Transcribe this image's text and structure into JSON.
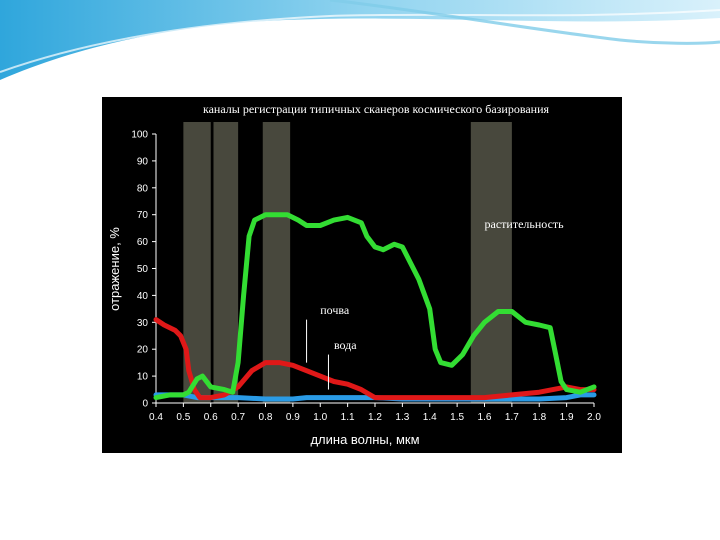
{
  "colors": {
    "vegetation": "#33dd33",
    "soil": "#e01818",
    "water": "#2a9be6",
    "band": "#5a5a4c",
    "background": "#000000"
  },
  "chart_data": {
    "type": "line",
    "title": "каналы регистрации типичных сканеров космического базирования",
    "xlabel": "длина волны, мкм",
    "ylabel": "отражение, %",
    "xlim": [
      0.4,
      2.0
    ],
    "ylim": [
      0,
      100
    ],
    "x_ticks": [
      "0.4",
      "0.5",
      "0.6",
      "0.7",
      "0.8",
      "0.9",
      "1.0",
      "1.1",
      "1.2",
      "1.3",
      "1.4",
      "1.5",
      "1.6",
      "1.7",
      "1.8",
      "1.9",
      "2.0"
    ],
    "y_ticks": [
      "0",
      "10",
      "20",
      "30",
      "40",
      "50",
      "60",
      "70",
      "80",
      "90",
      "100"
    ],
    "grid": false,
    "bands": [
      [
        0.5,
        0.6
      ],
      [
        0.61,
        0.7
      ],
      [
        0.79,
        0.89
      ],
      [
        1.55,
        1.7
      ]
    ],
    "series": [
      {
        "name": "растительность",
        "color_key": "vegetation",
        "points": [
          [
            0.4,
            2
          ],
          [
            0.45,
            3
          ],
          [
            0.5,
            3
          ],
          [
            0.52,
            4
          ],
          [
            0.55,
            9
          ],
          [
            0.57,
            10
          ],
          [
            0.6,
            6
          ],
          [
            0.65,
            5
          ],
          [
            0.68,
            4
          ],
          [
            0.7,
            15
          ],
          [
            0.72,
            40
          ],
          [
            0.74,
            62
          ],
          [
            0.76,
            68
          ],
          [
            0.8,
            70
          ],
          [
            0.85,
            70
          ],
          [
            0.88,
            70
          ],
          [
            0.92,
            68
          ],
          [
            0.95,
            66
          ],
          [
            1.0,
            66
          ],
          [
            1.05,
            68
          ],
          [
            1.1,
            69
          ],
          [
            1.15,
            67
          ],
          [
            1.17,
            62
          ],
          [
            1.2,
            58
          ],
          [
            1.23,
            57
          ],
          [
            1.27,
            59
          ],
          [
            1.3,
            58
          ],
          [
            1.33,
            52
          ],
          [
            1.36,
            46
          ],
          [
            1.4,
            35
          ],
          [
            1.42,
            20
          ],
          [
            1.44,
            15
          ],
          [
            1.48,
            14
          ],
          [
            1.52,
            18
          ],
          [
            1.56,
            25
          ],
          [
            1.6,
            30
          ],
          [
            1.65,
            34
          ],
          [
            1.7,
            34
          ],
          [
            1.75,
            30
          ],
          [
            1.8,
            29
          ],
          [
            1.84,
            28
          ],
          [
            1.86,
            18
          ],
          [
            1.88,
            8
          ],
          [
            1.9,
            5
          ],
          [
            1.95,
            4
          ],
          [
            2.0,
            6
          ]
        ]
      },
      {
        "name": "почва",
        "color_key": "soil",
        "points": [
          [
            0.4,
            31
          ],
          [
            0.43,
            29
          ],
          [
            0.47,
            27
          ],
          [
            0.49,
            25
          ],
          [
            0.51,
            20
          ],
          [
            0.52,
            12
          ],
          [
            0.54,
            5
          ],
          [
            0.56,
            2
          ],
          [
            0.6,
            2
          ],
          [
            0.65,
            3
          ],
          [
            0.7,
            6
          ],
          [
            0.75,
            12
          ],
          [
            0.8,
            15
          ],
          [
            0.85,
            15
          ],
          [
            0.9,
            14
          ],
          [
            0.95,
            12
          ],
          [
            1.0,
            10
          ],
          [
            1.05,
            8
          ],
          [
            1.1,
            7
          ],
          [
            1.15,
            5
          ],
          [
            1.2,
            2
          ],
          [
            1.25,
            2
          ],
          [
            1.3,
            2
          ],
          [
            1.35,
            2
          ],
          [
            1.4,
            2
          ],
          [
            1.5,
            2
          ],
          [
            1.6,
            2
          ],
          [
            1.7,
            3
          ],
          [
            1.8,
            4
          ],
          [
            1.85,
            5
          ],
          [
            1.9,
            6
          ],
          [
            1.95,
            5
          ],
          [
            2.0,
            5
          ]
        ]
      },
      {
        "name": "вода",
        "color_key": "water",
        "points": [
          [
            0.4,
            3
          ],
          [
            0.45,
            3
          ],
          [
            0.5,
            3
          ],
          [
            0.55,
            2
          ],
          [
            0.6,
            2
          ],
          [
            0.7,
            2
          ],
          [
            0.8,
            1.5
          ],
          [
            0.9,
            1.5
          ],
          [
            0.95,
            2
          ],
          [
            1.0,
            2
          ],
          [
            1.1,
            2
          ],
          [
            1.2,
            2
          ],
          [
            1.3,
            1.5
          ],
          [
            1.4,
            1.5
          ],
          [
            1.5,
            1.5
          ],
          [
            1.6,
            1.5
          ],
          [
            1.7,
            1.5
          ],
          [
            1.8,
            1.5
          ],
          [
            1.9,
            2
          ],
          [
            1.95,
            3
          ],
          [
            2.0,
            3
          ]
        ]
      }
    ],
    "annotations": [
      {
        "text": "растительность",
        "x": 1.6,
        "y": 65
      },
      {
        "text": "почва",
        "x": 1.0,
        "y": 33
      },
      {
        "text": "вода",
        "x": 1.05,
        "y": 20
      }
    ]
  }
}
